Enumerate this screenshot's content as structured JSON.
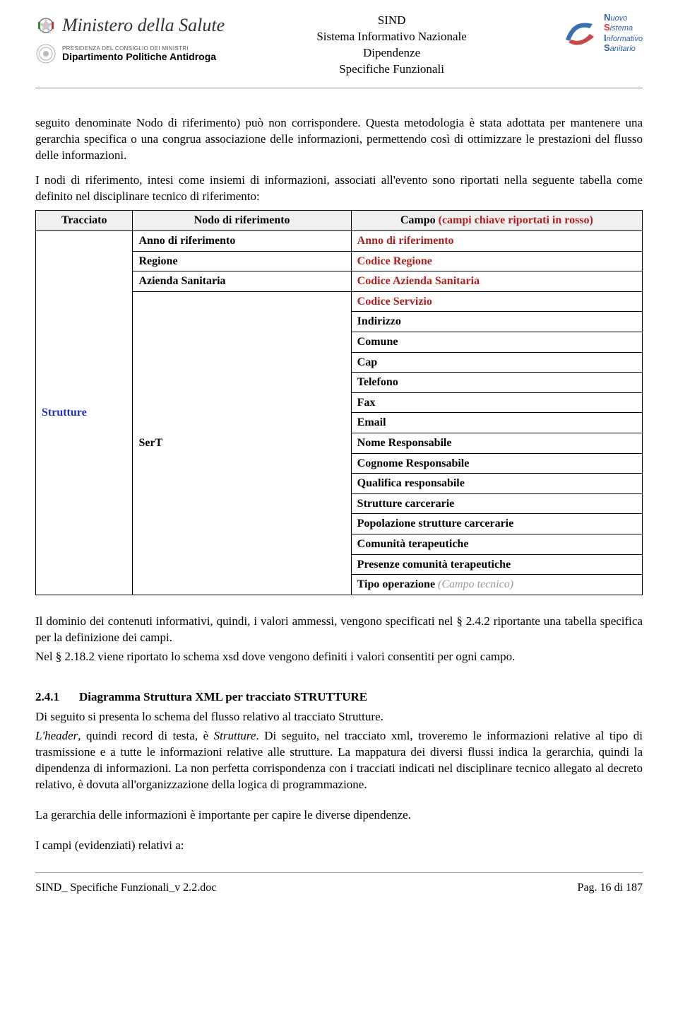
{
  "header": {
    "ministero": "Ministero della Salute",
    "dpa_small": "PRESIDENZA DEL CONSIGLIO DEI MINISTRI",
    "dpa_bold": "Dipartimento Politiche Antidroga",
    "center_l1": "SIND",
    "center_l2": "Sistema Informativo Nazionale",
    "center_l3": "Dipendenze",
    "center_l4": "Specifiche Funzionali",
    "nsis": {
      "n": "Nuovo",
      "s": "Sistema",
      "i": "Informativo",
      "sa": "Sanitario"
    }
  },
  "paragraphs": {
    "p1": "seguito denominate Nodo di riferimento) può non corrispondere. Questa metodologia è stata adottata per mantenere una gerarchia specifica o una congrua associazione delle informazioni, permettendo così di ottimizzare le prestazioni del flusso delle informazioni.",
    "p2": "I nodi di riferimento, intesi come insiemi di informazioni, associati all'evento sono riportati nella seguente tabella come definito nel disciplinare tecnico di riferimento:",
    "p3": "Il dominio dei contenuti informativi, quindi, i valori ammessi, vengono specificati nel § 2.4.2 riportante una tabella specifica per la definizione dei campi.",
    "p4": "Nel § 2.18.2 viene riportato lo schema xsd dove vengono definiti i valori consentiti per ogni campo.",
    "sec_num": "2.4.1",
    "sec_title": "Diagramma Struttura XML per tracciato STRUTTURE",
    "p5": "Di seguito si presenta lo schema del flusso relativo al tracciato Strutture.",
    "p6a": "L'header",
    "p6b": ", quindi record di testa, è ",
    "p6c": "Strutture",
    "p6d": ". Di seguito, nel tracciato xml, troveremo le informazioni relative al tipo di trasmissione e a tutte le informazioni relative alle strutture. La mappatura dei diversi flussi indica la gerarchia, quindi la dipendenza di informazioni. La non perfetta corrispondenza con i tracciati indicati nel disciplinare tecnico allegato al decreto relativo, è dovuta all'organizzazione della logica di programmazione.",
    "p7": "La gerarchia delle informazioni è importante per capire le diverse dipendenze.",
    "p8": "I campi (evidenziati) relativi a:"
  },
  "table": {
    "headers": {
      "tracciato": "Tracciato",
      "nodo": "Nodo di riferimento",
      "campo": "Campo ",
      "campo_note": "(campi chiave riportati in rosso)"
    },
    "tracciato": "Strutture",
    "rows": [
      {
        "nodo": "Anno di riferimento",
        "campo": "Anno di riferimento",
        "red": true
      },
      {
        "nodo": "Regione",
        "campo": "Codice Regione",
        "red": true
      },
      {
        "nodo": "Azienda Sanitaria",
        "campo": "Codice Azienda Sanitaria",
        "red": true
      },
      {
        "nodo": "SerT",
        "campo": "Codice Servizio",
        "red": true,
        "nodo_rowspan": 15
      },
      {
        "campo": "Indirizzo"
      },
      {
        "campo": "Comune"
      },
      {
        "campo": "Cap"
      },
      {
        "campo": "Telefono"
      },
      {
        "campo": "Fax"
      },
      {
        "campo": "Email"
      },
      {
        "campo": "Nome Responsabile"
      },
      {
        "campo": "Cognome Responsabile"
      },
      {
        "campo": "Qualifica responsabile"
      },
      {
        "campo": "Strutture carcerarie"
      },
      {
        "campo": "Popolazione strutture carcerarie"
      },
      {
        "campo": "Comunità terapeutiche"
      },
      {
        "campo": "Presenze comunità terapeutiche"
      },
      {
        "campo": "Tipo operazione ",
        "note": "(Campo tecnico)"
      }
    ]
  },
  "footer": {
    "left": "SIND_ Specifiche Funzionali_v 2.2.doc",
    "right": "Pag. 16 di 187"
  },
  "colors": {
    "red": "#b02020",
    "blue": "#2030c0",
    "gray": "#9a9a9a",
    "header_bg": "#f0f0f0",
    "border": "#000000",
    "rule": "#888888"
  }
}
